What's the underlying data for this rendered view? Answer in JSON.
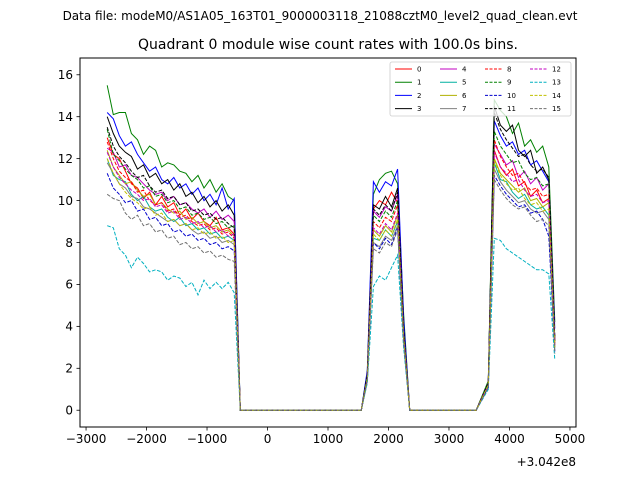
{
  "chart_data": {
    "type": "line",
    "suptitle": "Data file: modeM0/AS1A05_163T01_9000003118_21088cztM0_level2_quad_clean.evt",
    "title": "Quadrant 0 module wise count rates with 100.0s bins.",
    "xlabel": "",
    "ylabel": "",
    "x_offset_label": "+3.042e8",
    "xlim": [
      -3100,
      5100
    ],
    "ylim": [
      -0.8,
      16.8
    ],
    "xticks": [
      -3000,
      -2000,
      -1000,
      0,
      1000,
      2000,
      3000,
      4000,
      5000
    ],
    "xtick_labels": [
      "−3000",
      "−2000",
      "−1000",
      "0",
      "1000",
      "2000",
      "3000",
      "4000",
      "5000"
    ],
    "yticks": [
      0,
      2,
      4,
      6,
      8,
      10,
      12,
      14,
      16
    ],
    "ytick_labels": [
      "0",
      "2",
      "4",
      "6",
      "8",
      "10",
      "12",
      "14",
      "16"
    ],
    "grid": false,
    "legend_location": "upper-right",
    "legend_columns": 4,
    "segments": [
      {
        "x_start": -2650,
        "x_end": -550,
        "step": 100
      },
      {
        "x_start": -450,
        "x_end": 1550,
        "step": 100
      },
      {
        "x_start": 1650,
        "x_end": 2250,
        "step": 100
      },
      {
        "x_start": 2350,
        "x_end": 3450,
        "step": 100
      },
      {
        "x_start": 3650,
        "x_end": 4750,
        "step": 100
      }
    ],
    "series": [
      {
        "name": "0",
        "color": "#ff0000",
        "dash": "solid",
        "seg0": [
          13.0,
          12.2,
          12.0,
          11.4,
          10.8,
          10.6,
          10.1,
          10.4,
          9.8,
          10.2,
          9.7,
          9.9,
          9.3,
          9.6,
          9.1,
          9.4,
          9.0,
          8.8,
          9.2,
          8.6,
          8.7,
          8.4
        ],
        "seg2": [
          1.7,
          9.6,
          10.0,
          9.8,
          10.4,
          9.9,
          4.0
        ],
        "seg4": [
          1.3,
          12.4,
          11.6,
          11.2,
          11.5,
          10.7,
          10.9,
          10.2,
          10.5,
          9.9,
          10.1,
          3.2
        ]
      },
      {
        "name": "1",
        "color": "#008000",
        "dash": "solid",
        "seg0": [
          15.5,
          14.1,
          14.2,
          14.2,
          13.2,
          12.9,
          12.2,
          12.6,
          12.4,
          11.6,
          11.8,
          11.7,
          11.4,
          11.3,
          10.9,
          11.2,
          10.6,
          11.0,
          10.4,
          10.8,
          10.2,
          10.0
        ],
        "seg2": [
          1.8,
          10.3,
          11.0,
          11.3,
          11.4,
          10.8,
          4.6
        ],
        "seg4": [
          1.4,
          14.8,
          14.3,
          14.0,
          13.2,
          13.7,
          12.6,
          12.9,
          12.3,
          12.6,
          11.6,
          4.2
        ]
      },
      {
        "name": "2",
        "color": "#0000ff",
        "dash": "solid",
        "seg0": [
          14.2,
          13.9,
          13.1,
          12.6,
          12.8,
          12.2,
          11.8,
          11.4,
          11.6,
          11.0,
          10.8,
          11.1,
          10.6,
          10.8,
          10.3,
          10.6,
          10.0,
          10.3,
          9.8,
          10.6,
          9.6,
          10.1
        ],
        "seg2": [
          1.9,
          10.9,
          10.4,
          10.9,
          10.7,
          11.5,
          4.4
        ],
        "seg4": [
          1.3,
          13.8,
          13.1,
          12.6,
          12.8,
          12.2,
          12.4,
          11.7,
          11.9,
          11.4,
          10.9,
          3.9
        ]
      },
      {
        "name": "3",
        "color": "#000000",
        "dash": "solid",
        "seg0": [
          14.0,
          13.2,
          12.6,
          12.3,
          12.1,
          11.5,
          11.7,
          11.1,
          11.3,
          10.8,
          11.0,
          10.5,
          10.8,
          10.2,
          10.4,
          9.9,
          10.2,
          9.7,
          10.0,
          9.5,
          9.8,
          9.3
        ],
        "seg2": [
          1.6,
          9.8,
          9.6,
          10.2,
          9.7,
          10.6,
          3.9
        ],
        "seg4": [
          1.3,
          14.5,
          13.6,
          13.3,
          13.6,
          12.4,
          12.1,
          12.4,
          11.3,
          11.6,
          11.0,
          3.4
        ]
      },
      {
        "name": "4",
        "color": "#c000c0",
        "dash": "solid",
        "seg0": [
          12.5,
          12.3,
          11.6,
          11.7,
          11.2,
          11.1,
          10.8,
          10.5,
          10.3,
          10.4,
          10.0,
          10.2,
          9.8,
          9.9,
          9.6,
          9.4,
          9.6,
          9.2,
          9.5,
          9.1,
          9.3,
          9.0
        ],
        "seg2": [
          1.6,
          9.5,
          9.2,
          9.7,
          9.5,
          10.3,
          3.8
        ],
        "seg4": [
          1.3,
          12.7,
          12.2,
          11.7,
          11.9,
          11.1,
          11.4,
          10.8,
          11.1,
          10.5,
          10.8,
          3.3
        ]
      },
      {
        "name": "5",
        "color": "#00b0a0",
        "dash": "solid",
        "seg0": [
          12.0,
          11.2,
          11.0,
          10.9,
          10.3,
          10.0,
          10.2,
          9.7,
          9.5,
          9.6,
          9.2,
          9.0,
          9.2,
          8.8,
          8.9,
          8.6,
          8.7,
          8.4,
          8.5,
          8.2,
          8.3,
          8.1
        ],
        "seg2": [
          1.5,
          8.2,
          8.1,
          8.6,
          8.3,
          9.0,
          3.5
        ],
        "seg4": [
          1.2,
          11.8,
          11.0,
          10.9,
          10.4,
          10.1,
          10.3,
          9.8,
          9.6,
          9.7,
          9.3,
          3.0
        ]
      },
      {
        "name": "6",
        "color": "#b0b000",
        "dash": "solid",
        "seg0": [
          12.4,
          11.6,
          11.2,
          10.8,
          10.9,
          10.5,
          10.2,
          10.3,
          9.8,
          9.9,
          9.6,
          9.4,
          9.5,
          9.1,
          9.2,
          8.9,
          9.0,
          8.7,
          8.8,
          8.5,
          8.6,
          8.3
        ],
        "seg2": [
          1.5,
          8.6,
          8.3,
          8.8,
          8.5,
          9.3,
          3.6
        ],
        "seg4": [
          1.2,
          12.0,
          11.3,
          11.0,
          10.7,
          10.4,
          10.6,
          10.0,
          10.1,
          9.7,
          9.9,
          3.1
        ]
      },
      {
        "name": "7",
        "color": "#808080",
        "dash": "solid",
        "seg0": [
          11.8,
          11.3,
          10.8,
          10.6,
          10.2,
          10.1,
          9.7,
          9.6,
          9.4,
          9.2,
          9.0,
          9.1,
          8.8,
          8.9,
          8.6,
          8.4,
          8.5,
          8.2,
          8.3,
          8.0,
          8.1,
          7.9
        ],
        "seg2": [
          1.4,
          8.0,
          7.8,
          8.3,
          8.1,
          8.8,
          3.4
        ],
        "seg4": [
          1.1,
          11.5,
          10.9,
          10.5,
          10.2,
          9.9,
          10.0,
          9.6,
          9.4,
          9.5,
          9.1,
          2.9
        ]
      },
      {
        "name": "8",
        "color": "#ff0000",
        "dash": "dashed",
        "seg0": [
          12.8,
          12.0,
          11.4,
          11.1,
          10.9,
          10.4,
          10.5,
          10.0,
          9.8,
          9.9,
          9.5,
          9.6,
          9.2,
          9.3,
          9.0,
          8.8,
          8.9,
          8.6,
          8.7,
          8.4,
          8.5,
          8.2
        ],
        "seg2": [
          1.6,
          9.0,
          8.7,
          9.2,
          9.0,
          9.8,
          3.7
        ],
        "seg4": [
          1.2,
          12.9,
          12.1,
          11.6,
          11.2,
          11.3,
          10.8,
          10.5,
          10.6,
          10.2,
          10.3,
          3.2
        ]
      },
      {
        "name": "9",
        "color": "#008000",
        "dash": "dashed",
        "seg0": [
          13.4,
          12.2,
          11.9,
          11.5,
          11.2,
          11.0,
          10.6,
          10.7,
          10.2,
          10.3,
          9.9,
          10.0,
          9.6,
          9.7,
          9.3,
          9.4,
          9.1,
          9.2,
          8.9,
          9.0,
          8.7,
          8.8
        ],
        "seg2": [
          1.7,
          9.3,
          9.0,
          9.5,
          9.2,
          10.0,
          3.8
        ],
        "seg4": [
          1.3,
          13.3,
          12.6,
          12.2,
          11.8,
          11.9,
          11.3,
          11.0,
          11.1,
          10.7,
          10.8,
          3.3
        ]
      },
      {
        "name": "10",
        "color": "#0000cc",
        "dash": "dashed",
        "seg0": [
          11.3,
          10.6,
          10.3,
          9.9,
          10.0,
          9.5,
          9.6,
          9.1,
          9.2,
          8.8,
          8.9,
          8.5,
          8.6,
          8.3,
          8.4,
          8.1,
          8.2,
          7.9,
          8.0,
          7.7,
          7.8,
          7.6
        ],
        "seg2": [
          1.4,
          8.0,
          7.7,
          8.2,
          7.9,
          8.7,
          3.3
        ],
        "seg4": [
          1.1,
          11.2,
          10.7,
          10.3,
          10.0,
          9.7,
          9.8,
          9.4,
          9.5,
          9.1,
          8.3,
          2.8
        ]
      },
      {
        "name": "11",
        "color": "#000000",
        "dash": "dashed",
        "seg0": [
          13.5,
          12.6,
          12.1,
          11.8,
          11.4,
          11.1,
          11.2,
          10.7,
          10.4,
          10.5,
          10.1,
          10.2,
          9.8,
          9.9,
          9.5,
          9.6,
          9.3,
          9.4,
          9.1,
          9.2,
          8.9,
          8.7
        ],
        "seg2": [
          1.7,
          9.6,
          9.3,
          9.8,
          9.5,
          10.4,
          3.9
        ],
        "seg4": [
          1.3,
          14.2,
          13.4,
          12.9,
          12.5,
          12.1,
          12.2,
          11.7,
          11.4,
          11.5,
          11.1,
          3.5
        ]
      },
      {
        "name": "12",
        "color": "#c000c0",
        "dash": "dashed",
        "seg0": [
          12.3,
          11.6,
          11.1,
          10.8,
          10.5,
          10.3,
          10.0,
          10.1,
          9.7,
          9.8,
          9.4,
          9.5,
          9.1,
          9.2,
          8.9,
          9.0,
          8.7,
          8.8,
          8.5,
          8.6,
          8.3,
          8.4
        ],
        "seg2": [
          1.5,
          8.7,
          8.4,
          8.9,
          8.6,
          9.4,
          3.6
        ],
        "seg4": [
          1.2,
          12.3,
          11.6,
          11.3,
          10.9,
          11.0,
          10.5,
          10.2,
          10.3,
          9.9,
          10.0,
          3.1
        ]
      },
      {
        "name": "13",
        "color": "#00b0c0",
        "dash": "dashed",
        "seg0": [
          8.8,
          8.7,
          7.7,
          7.4,
          6.8,
          7.3,
          7.0,
          6.6,
          6.7,
          6.6,
          6.2,
          6.4,
          6.3,
          5.9,
          6.1,
          5.5,
          6.2,
          5.8,
          6.1,
          5.8,
          6.1,
          5.6
        ],
        "seg2": [
          1.3,
          5.9,
          6.4,
          6.2,
          6.8,
          7.4,
          3.0
        ],
        "seg4": [
          1.0,
          8.2,
          8.1,
          7.7,
          7.5,
          7.3,
          7.1,
          6.9,
          6.7,
          6.7,
          6.5,
          2.4
        ]
      },
      {
        "name": "14",
        "color": "#c0c000",
        "dash": "dashed",
        "seg0": [
          12.0,
          11.3,
          10.8,
          10.4,
          10.1,
          9.9,
          9.6,
          9.7,
          9.3,
          9.4,
          9.0,
          9.1,
          8.8,
          8.9,
          8.6,
          8.7,
          8.4,
          8.5,
          8.2,
          8.3,
          8.0,
          8.1
        ],
        "seg2": [
          1.5,
          8.4,
          8.1,
          8.6,
          8.3,
          9.1,
          3.5
        ],
        "seg4": [
          1.2,
          11.9,
          11.2,
          10.8,
          10.5,
          10.6,
          10.1,
          9.8,
          9.9,
          9.5,
          9.6,
          3.0
        ]
      },
      {
        "name": "15",
        "color": "#707070",
        "dash": "dashed",
        "seg0": [
          10.3,
          10.1,
          10.0,
          9.4,
          9.1,
          9.3,
          8.8,
          8.9,
          8.5,
          8.6,
          8.2,
          8.3,
          7.9,
          8.0,
          7.7,
          7.8,
          7.5,
          7.6,
          7.3,
          7.4,
          7.2,
          7.1
        ],
        "seg2": [
          1.4,
          7.7,
          7.5,
          8.0,
          7.8,
          8.6,
          3.3
        ],
        "seg4": [
          1.1,
          11.0,
          10.5,
          10.1,
          9.8,
          9.6,
          9.7,
          9.3,
          9.0,
          9.1,
          8.8,
          2.7
        ]
      }
    ]
  }
}
